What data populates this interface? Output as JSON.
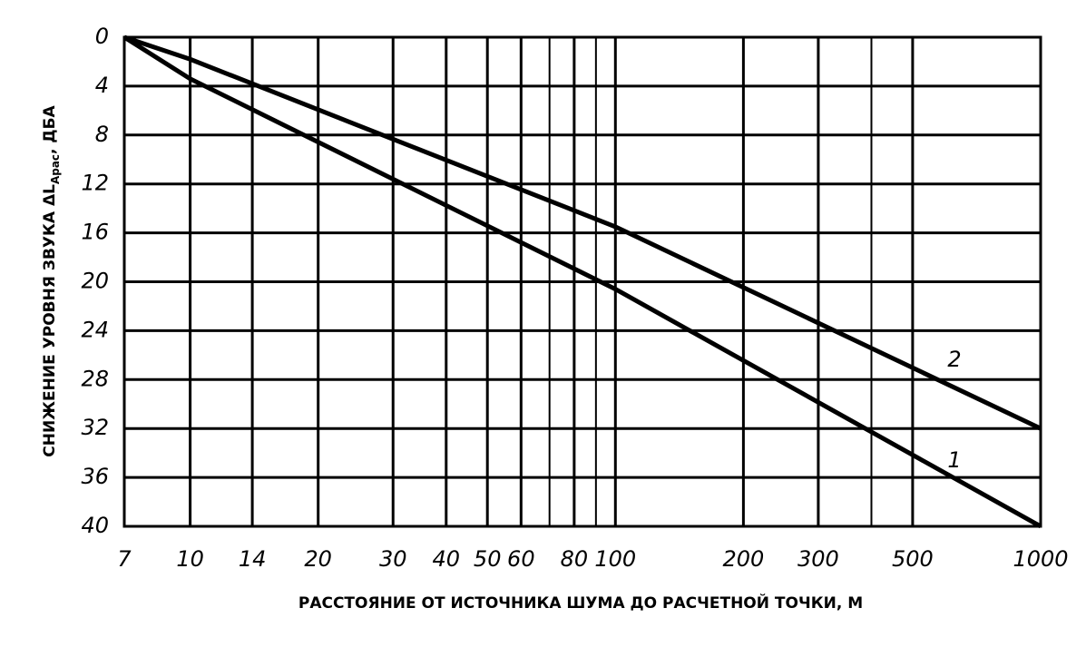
{
  "chart_data": {
    "type": "line",
    "xlabel": "РАССТОЯНИЕ ОТ ИСТОЧНИКА ШУМА ДО РАСЧЕТНОЙ ТОЧКИ, М",
    "ylabel": "СНИЖЕНИЕ УРОВНЯ ЗВУКА ΔL",
    "ylabel_sub": "Арас",
    "ylabel_end": ", ДБА",
    "x": [
      7,
      10,
      100,
      1000
    ],
    "series": [
      {
        "name": "1",
        "color": "#000000",
        "values": [
          0,
          3.4,
          20.6,
          40
        ]
      },
      {
        "name": "2",
        "color": "#000000",
        "values": [
          0,
          1.8,
          15.5,
          32
        ]
      }
    ],
    "xscale": "log",
    "xlim": [
      7,
      1000
    ],
    "xticks": [
      7,
      10,
      14,
      20,
      30,
      40,
      50,
      60,
      80,
      100,
      200,
      300,
      500,
      1000
    ],
    "xminor": [
      70,
      90,
      400
    ],
    "ylim": [
      0,
      40
    ],
    "yinverted": true,
    "yticks": [
      0,
      4,
      8,
      12,
      16,
      20,
      24,
      28,
      32,
      36,
      40
    ],
    "grid": true
  }
}
